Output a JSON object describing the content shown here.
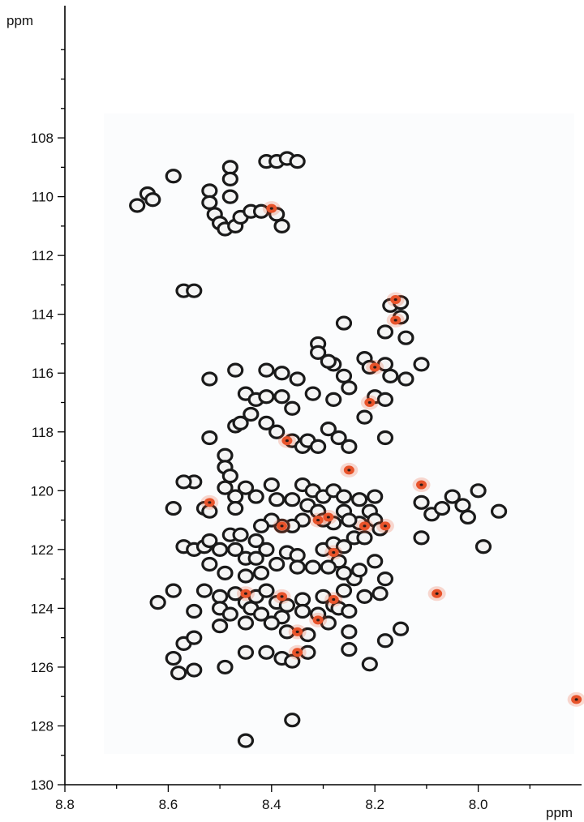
{
  "chart_data": {
    "type": "scatter",
    "title": "",
    "xlabel": "ppm",
    "ylabel": "ppm",
    "x_unit_label": "ppm",
    "y_unit_label": "ppm",
    "xlim": [
      8.8,
      7.8
    ],
    "ylim": [
      104,
      130
    ],
    "x_reversed": true,
    "y_reversed": true,
    "x_major_ticks": [
      "8.8",
      "8.6",
      "8.4",
      "8.2",
      "8.0"
    ],
    "y_major_ticks": [
      "108",
      "110",
      "112",
      "114",
      "116",
      "118",
      "120",
      "122",
      "124",
      "126",
      "128",
      "130"
    ],
    "grid": false,
    "legend": "none",
    "colors": {
      "black_peaks": "#1a1a1a",
      "red_peaks": "#e8532a",
      "frame": "#000000"
    },
    "series": [
      {
        "color": "#1a1a1a",
        "points": [
          [
            8.66,
            110.3
          ],
          [
            8.64,
            109.9
          ],
          [
            8.63,
            110.1
          ],
          [
            8.59,
            109.3
          ],
          [
            8.52,
            109.8
          ],
          [
            8.52,
            110.2
          ],
          [
            8.51,
            110.6
          ],
          [
            8.5,
            110.9
          ],
          [
            8.49,
            111.1
          ],
          [
            8.47,
            111.0
          ],
          [
            8.48,
            110.0
          ],
          [
            8.48,
            109.0
          ],
          [
            8.48,
            109.4
          ],
          [
            8.46,
            110.7
          ],
          [
            8.44,
            110.5
          ],
          [
            8.42,
            110.5
          ],
          [
            8.41,
            108.8
          ],
          [
            8.39,
            108.8
          ],
          [
            8.37,
            108.7
          ],
          [
            8.35,
            108.8
          ],
          [
            8.39,
            110.6
          ],
          [
            8.38,
            111.0
          ],
          [
            8.57,
            113.2
          ],
          [
            8.55,
            113.2
          ],
          [
            8.17,
            113.7
          ],
          [
            8.15,
            113.6
          ],
          [
            8.15,
            114.1
          ],
          [
            8.14,
            114.8
          ],
          [
            8.18,
            114.6
          ],
          [
            8.26,
            114.3
          ],
          [
            8.31,
            115.0
          ],
          [
            8.31,
            115.3
          ],
          [
            8.28,
            115.7
          ],
          [
            8.26,
            116.1
          ],
          [
            8.29,
            115.6
          ],
          [
            8.22,
            115.5
          ],
          [
            8.21,
            115.8
          ],
          [
            8.18,
            115.7
          ],
          [
            8.17,
            116.1
          ],
          [
            8.11,
            115.7
          ],
          [
            8.14,
            116.2
          ],
          [
            8.52,
            116.2
          ],
          [
            8.47,
            115.9
          ],
          [
            8.41,
            115.9
          ],
          [
            8.38,
            116.0
          ],
          [
            8.35,
            116.2
          ],
          [
            8.45,
            116.7
          ],
          [
            8.43,
            116.9
          ],
          [
            8.41,
            116.8
          ],
          [
            8.38,
            116.8
          ],
          [
            8.36,
            117.2
          ],
          [
            8.32,
            116.7
          ],
          [
            8.28,
            116.9
          ],
          [
            8.25,
            116.5
          ],
          [
            8.2,
            116.8
          ],
          [
            8.18,
            116.9
          ],
          [
            8.22,
            117.5
          ],
          [
            8.44,
            117.4
          ],
          [
            8.47,
            117.8
          ],
          [
            8.46,
            117.7
          ],
          [
            8.41,
            117.7
          ],
          [
            8.39,
            118.0
          ],
          [
            8.36,
            118.3
          ],
          [
            8.34,
            118.5
          ],
          [
            8.33,
            118.3
          ],
          [
            8.31,
            118.5
          ],
          [
            8.29,
            117.9
          ],
          [
            8.27,
            118.2
          ],
          [
            8.25,
            118.5
          ],
          [
            8.18,
            118.2
          ],
          [
            8.52,
            118.2
          ],
          [
            8.49,
            118.8
          ],
          [
            8.49,
            119.2
          ],
          [
            8.48,
            119.5
          ],
          [
            8.49,
            119.9
          ],
          [
            8.47,
            120.2
          ],
          [
            8.45,
            119.9
          ],
          [
            8.55,
            119.7
          ],
          [
            8.57,
            119.7
          ],
          [
            8.59,
            120.6
          ],
          [
            8.53,
            120.6
          ],
          [
            8.52,
            120.7
          ],
          [
            8.47,
            120.6
          ],
          [
            8.43,
            120.2
          ],
          [
            8.4,
            119.8
          ],
          [
            8.39,
            120.3
          ],
          [
            8.36,
            120.3
          ],
          [
            8.34,
            119.8
          ],
          [
            8.32,
            120.0
          ],
          [
            8.3,
            120.2
          ],
          [
            8.28,
            120.0
          ],
          [
            8.26,
            120.2
          ],
          [
            8.23,
            120.3
          ],
          [
            8.2,
            120.2
          ],
          [
            8.33,
            120.5
          ],
          [
            8.31,
            120.7
          ],
          [
            8.26,
            120.7
          ],
          [
            8.21,
            120.7
          ],
          [
            8.2,
            121.0
          ],
          [
            8.23,
            121.1
          ],
          [
            8.25,
            121.0
          ],
          [
            8.28,
            121.1
          ],
          [
            8.3,
            121.0
          ],
          [
            8.34,
            121.0
          ],
          [
            8.36,
            121.2
          ],
          [
            8.38,
            121.2
          ],
          [
            8.4,
            121.0
          ],
          [
            8.42,
            121.2
          ],
          [
            8.48,
            121.5
          ],
          [
            8.46,
            121.5
          ],
          [
            8.43,
            121.7
          ],
          [
            8.11,
            120.4
          ],
          [
            8.09,
            120.8
          ],
          [
            8.07,
            120.6
          ],
          [
            8.05,
            120.2
          ],
          [
            8.03,
            120.5
          ],
          [
            8.02,
            120.9
          ],
          [
            8.0,
            120.0
          ],
          [
            7.96,
            120.7
          ],
          [
            8.11,
            121.6
          ],
          [
            7.99,
            121.9
          ],
          [
            8.57,
            121.9
          ],
          [
            8.55,
            122.0
          ],
          [
            8.53,
            121.9
          ],
          [
            8.52,
            121.7
          ],
          [
            8.5,
            122.0
          ],
          [
            8.47,
            122.0
          ],
          [
            8.45,
            122.3
          ],
          [
            8.43,
            122.3
          ],
          [
            8.41,
            122.0
          ],
          [
            8.37,
            122.1
          ],
          [
            8.35,
            122.2
          ],
          [
            8.3,
            122.0
          ],
          [
            8.28,
            121.8
          ],
          [
            8.26,
            121.9
          ],
          [
            8.24,
            121.6
          ],
          [
            8.22,
            121.6
          ],
          [
            8.19,
            121.3
          ],
          [
            8.27,
            122.4
          ],
          [
            8.29,
            122.6
          ],
          [
            8.32,
            122.6
          ],
          [
            8.35,
            122.6
          ],
          [
            8.39,
            122.5
          ],
          [
            8.42,
            122.8
          ],
          [
            8.45,
            122.9
          ],
          [
            8.49,
            122.8
          ],
          [
            8.52,
            122.5
          ],
          [
            8.59,
            123.4
          ],
          [
            8.62,
            123.8
          ],
          [
            8.53,
            123.4
          ],
          [
            8.5,
            123.6
          ],
          [
            8.47,
            123.5
          ],
          [
            8.45,
            123.8
          ],
          [
            8.43,
            123.6
          ],
          [
            8.41,
            123.4
          ],
          [
            8.39,
            123.8
          ],
          [
            8.37,
            123.9
          ],
          [
            8.34,
            123.7
          ],
          [
            8.3,
            123.6
          ],
          [
            8.28,
            123.9
          ],
          [
            8.26,
            123.4
          ],
          [
            8.24,
            123.0
          ],
          [
            8.22,
            123.6
          ],
          [
            8.19,
            123.5
          ],
          [
            8.18,
            123.0
          ],
          [
            8.2,
            122.4
          ],
          [
            8.23,
            122.7
          ],
          [
            8.26,
            122.8
          ],
          [
            8.55,
            124.1
          ],
          [
            8.5,
            124.0
          ],
          [
            8.48,
            124.2
          ],
          [
            8.44,
            124.0
          ],
          [
            8.42,
            124.2
          ],
          [
            8.38,
            124.3
          ],
          [
            8.34,
            124.1
          ],
          [
            8.31,
            124.2
          ],
          [
            8.29,
            124.5
          ],
          [
            8.27,
            124.0
          ],
          [
            8.25,
            124.1
          ],
          [
            8.5,
            124.6
          ],
          [
            8.45,
            124.5
          ],
          [
            8.4,
            124.5
          ],
          [
            8.37,
            124.8
          ],
          [
            8.33,
            124.9
          ],
          [
            8.25,
            124.8
          ],
          [
            8.18,
            125.1
          ],
          [
            8.15,
            124.7
          ],
          [
            8.57,
            125.2
          ],
          [
            8.55,
            125.0
          ],
          [
            8.59,
            125.7
          ],
          [
            8.58,
            126.2
          ],
          [
            8.55,
            126.1
          ],
          [
            8.49,
            126.0
          ],
          [
            8.45,
            125.5
          ],
          [
            8.41,
            125.5
          ],
          [
            8.38,
            125.7
          ],
          [
            8.36,
            125.8
          ],
          [
            8.33,
            125.5
          ],
          [
            8.25,
            125.4
          ],
          [
            8.21,
            125.9
          ],
          [
            8.36,
            127.8
          ],
          [
            8.45,
            128.5
          ]
        ]
      },
      {
        "color": "#e8532a",
        "points": [
          [
            8.4,
            110.4
          ],
          [
            8.16,
            113.5
          ],
          [
            8.16,
            114.2
          ],
          [
            8.2,
            115.8
          ],
          [
            8.21,
            117.0
          ],
          [
            8.37,
            118.3
          ],
          [
            8.25,
            119.3
          ],
          [
            8.11,
            119.8
          ],
          [
            8.52,
            120.4
          ],
          [
            8.38,
            121.2
          ],
          [
            8.31,
            121.0
          ],
          [
            8.29,
            120.9
          ],
          [
            8.22,
            121.2
          ],
          [
            8.18,
            121.2
          ],
          [
            8.28,
            122.1
          ],
          [
            8.08,
            123.5
          ],
          [
            8.45,
            123.5
          ],
          [
            8.38,
            123.6
          ],
          [
            8.28,
            123.7
          ],
          [
            8.35,
            124.8
          ],
          [
            8.31,
            124.4
          ],
          [
            8.35,
            125.5
          ],
          [
            7.81,
            127.1
          ]
        ]
      }
    ]
  }
}
